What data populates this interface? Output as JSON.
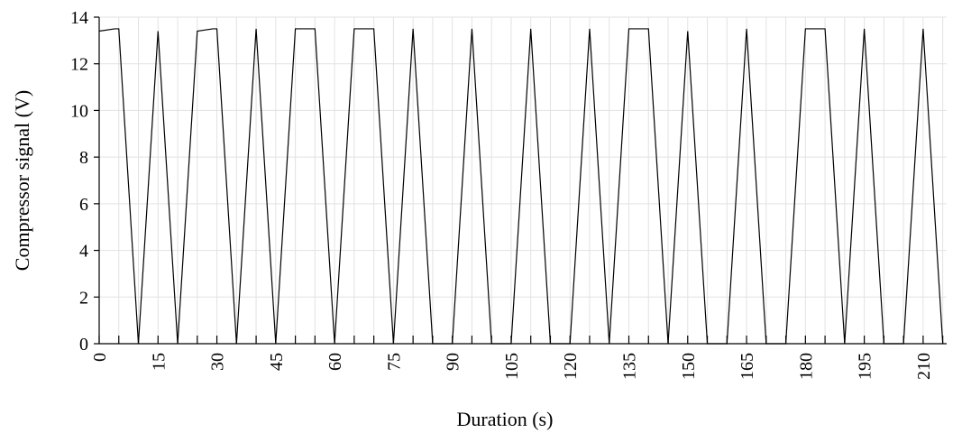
{
  "chart_data": {
    "type": "line",
    "title": "",
    "xlabel": "Duration (s)",
    "ylabel": "Compressor signal (V)",
    "xlim": [
      0,
      216
    ],
    "ylim": [
      0,
      14
    ],
    "x_ticks": [
      0,
      15,
      30,
      45,
      60,
      75,
      90,
      105,
      120,
      135,
      150,
      165,
      180,
      195,
      210
    ],
    "x_ticks_label": [
      "0",
      "15",
      "30",
      "45",
      "60",
      "75",
      "90",
      "105",
      "120",
      "135",
      "150",
      "165",
      "180",
      "195",
      "210"
    ],
    "y_ticks": [
      0,
      2,
      4,
      6,
      8,
      10,
      12,
      14
    ],
    "y_ticks_label": [
      "0",
      "2",
      "4",
      "6",
      "8",
      "10",
      "12",
      "14"
    ],
    "grid": true,
    "series": [
      {
        "color": "#000000",
        "x": [
          0,
          4,
          5,
          10,
          15,
          20,
          25,
          29,
          30,
          35,
          40,
          45,
          50,
          55,
          60,
          65,
          70,
          75,
          80,
          85,
          90,
          95,
          100,
          105,
          110,
          115,
          120,
          125,
          130,
          135,
          140,
          145,
          150,
          155,
          160,
          165,
          170,
          175,
          180,
          185,
          190,
          195,
          200,
          205,
          210,
          215
        ],
        "y": [
          13.4,
          13.5,
          13.5,
          0,
          13.4,
          0,
          13.4,
          13.5,
          13.5,
          0,
          13.5,
          0,
          13.5,
          13.5,
          0,
          13.5,
          13.5,
          0,
          13.5,
          0,
          0,
          13.5,
          0,
          0,
          13.5,
          0,
          0,
          13.5,
          0,
          13.5,
          13.5,
          0,
          13.4,
          0,
          0,
          13.5,
          0,
          0,
          13.5,
          13.5,
          0,
          13.5,
          0,
          0,
          13.5,
          0
        ]
      }
    ]
  }
}
